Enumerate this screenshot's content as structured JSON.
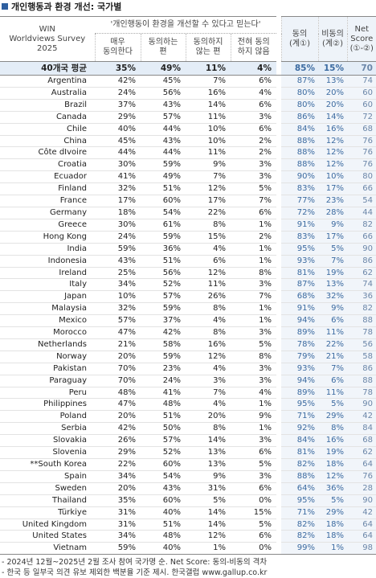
{
  "header": {
    "title": "개인행동과 환경 개선: 국가별",
    "survey": [
      "WIN",
      "Worldviews Survey",
      "2025"
    ],
    "group": "'개인행동이 환경을 개선할 수 있다고 믿는다'",
    "columns": [
      [
        "매우",
        "동의한다"
      ],
      [
        "동의하는",
        "편"
      ],
      [
        "동의하지",
        "않는 편"
      ],
      [
        "전혀 동의",
        "하지 않음"
      ],
      [
        "동의",
        "(계①)"
      ],
      [
        "비동의",
        "(계②)"
      ],
      [
        "Net",
        "Score",
        "(①-②)"
      ]
    ]
  },
  "table": {
    "rows": [
      [
        "40개국 평균",
        "35%",
        "49%",
        "11%",
        "4%",
        "85%",
        "15%",
        "70"
      ],
      [
        "Argentina",
        "42%",
        "45%",
        "7%",
        "6%",
        "87%",
        "13%",
        "74"
      ],
      [
        "Australia",
        "24%",
        "56%",
        "16%",
        "4%",
        "80%",
        "20%",
        "60"
      ],
      [
        "Brazil",
        "37%",
        "43%",
        "14%",
        "6%",
        "80%",
        "20%",
        "60"
      ],
      [
        "Canada",
        "29%",
        "57%",
        "11%",
        "3%",
        "86%",
        "14%",
        "72"
      ],
      [
        "Chile",
        "40%",
        "44%",
        "10%",
        "6%",
        "84%",
        "16%",
        "68"
      ],
      [
        "China",
        "45%",
        "43%",
        "10%",
        "2%",
        "88%",
        "12%",
        "76"
      ],
      [
        "Côte dIvoire",
        "44%",
        "44%",
        "11%",
        "2%",
        "88%",
        "12%",
        "76"
      ],
      [
        "Croatia",
        "30%",
        "59%",
        "9%",
        "3%",
        "88%",
        "12%",
        "76"
      ],
      [
        "Ecuador",
        "41%",
        "49%",
        "7%",
        "3%",
        "90%",
        "10%",
        "80"
      ],
      [
        "Finland",
        "32%",
        "51%",
        "12%",
        "5%",
        "83%",
        "17%",
        "66"
      ],
      [
        "France",
        "17%",
        "60%",
        "17%",
        "7%",
        "77%",
        "23%",
        "54"
      ],
      [
        "Germany",
        "18%",
        "54%",
        "22%",
        "6%",
        "72%",
        "28%",
        "44"
      ],
      [
        "Greece",
        "30%",
        "61%",
        "8%",
        "1%",
        "91%",
        "9%",
        "82"
      ],
      [
        "Hong Kong",
        "24%",
        "59%",
        "15%",
        "2%",
        "83%",
        "17%",
        "66"
      ],
      [
        "India",
        "59%",
        "36%",
        "4%",
        "1%",
        "95%",
        "5%",
        "90"
      ],
      [
        "Indonesia",
        "43%",
        "51%",
        "6%",
        "1%",
        "93%",
        "7%",
        "86"
      ],
      [
        "Ireland",
        "25%",
        "56%",
        "12%",
        "8%",
        "81%",
        "19%",
        "62"
      ],
      [
        "Italy",
        "34%",
        "52%",
        "11%",
        "3%",
        "87%",
        "13%",
        "74"
      ],
      [
        "Japan",
        "10%",
        "57%",
        "26%",
        "7%",
        "68%",
        "32%",
        "36"
      ],
      [
        "Malaysia",
        "32%",
        "59%",
        "8%",
        "1%",
        "91%",
        "9%",
        "82"
      ],
      [
        "Mexico",
        "57%",
        "37%",
        "4%",
        "1%",
        "94%",
        "6%",
        "88"
      ],
      [
        "Morocco",
        "47%",
        "42%",
        "8%",
        "3%",
        "89%",
        "11%",
        "78"
      ],
      [
        "Netherlands",
        "21%",
        "58%",
        "16%",
        "5%",
        "78%",
        "22%",
        "56"
      ],
      [
        "Norway",
        "20%",
        "59%",
        "12%",
        "8%",
        "79%",
        "21%",
        "58"
      ],
      [
        "Pakistan",
        "70%",
        "23%",
        "4%",
        "3%",
        "93%",
        "7%",
        "86"
      ],
      [
        "Paraguay",
        "70%",
        "24%",
        "3%",
        "3%",
        "94%",
        "6%",
        "88"
      ],
      [
        "Peru",
        "48%",
        "41%",
        "7%",
        "4%",
        "89%",
        "11%",
        "78"
      ],
      [
        "Philippines",
        "47%",
        "48%",
        "4%",
        "1%",
        "95%",
        "5%",
        "90"
      ],
      [
        "Poland",
        "20%",
        "51%",
        "20%",
        "9%",
        "71%",
        "29%",
        "42"
      ],
      [
        "Serbia",
        "42%",
        "50%",
        "8%",
        "1%",
        "92%",
        "8%",
        "84"
      ],
      [
        "Slovakia",
        "26%",
        "57%",
        "14%",
        "3%",
        "84%",
        "16%",
        "68"
      ],
      [
        "Slovenia",
        "29%",
        "52%",
        "13%",
        "6%",
        "81%",
        "19%",
        "62"
      ],
      [
        "**South Korea",
        "22%",
        "60%",
        "13%",
        "5%",
        "82%",
        "18%",
        "64"
      ],
      [
        "Spain",
        "34%",
        "54%",
        "9%",
        "3%",
        "88%",
        "12%",
        "76"
      ],
      [
        "Sweden",
        "20%",
        "43%",
        "31%",
        "6%",
        "64%",
        "36%",
        "28"
      ],
      [
        "Thailand",
        "35%",
        "60%",
        "5%",
        "0%",
        "95%",
        "5%",
        "90"
      ],
      [
        "Türkiye",
        "31%",
        "40%",
        "14%",
        "15%",
        "71%",
        "29%",
        "42"
      ],
      [
        "United Kingdom",
        "31%",
        "51%",
        "14%",
        "5%",
        "82%",
        "18%",
        "64"
      ],
      [
        "United States",
        "34%",
        "48%",
        "12%",
        "6%",
        "82%",
        "18%",
        "64"
      ],
      [
        "Vietnam",
        "59%",
        "40%",
        "1%",
        "0%",
        "99%",
        "1%",
        "98"
      ]
    ]
  },
  "footer": {
    "notes": [
      "- 2024년 12월~2025년 2월 조사 참여 국가명 순. Net Score: 동의-비동의 격차",
      "- 한국 등 일부국 의견 유보 제외한 백분율 기준 제시. 한국갤럽 www.gallup.co.kr"
    ]
  }
}
